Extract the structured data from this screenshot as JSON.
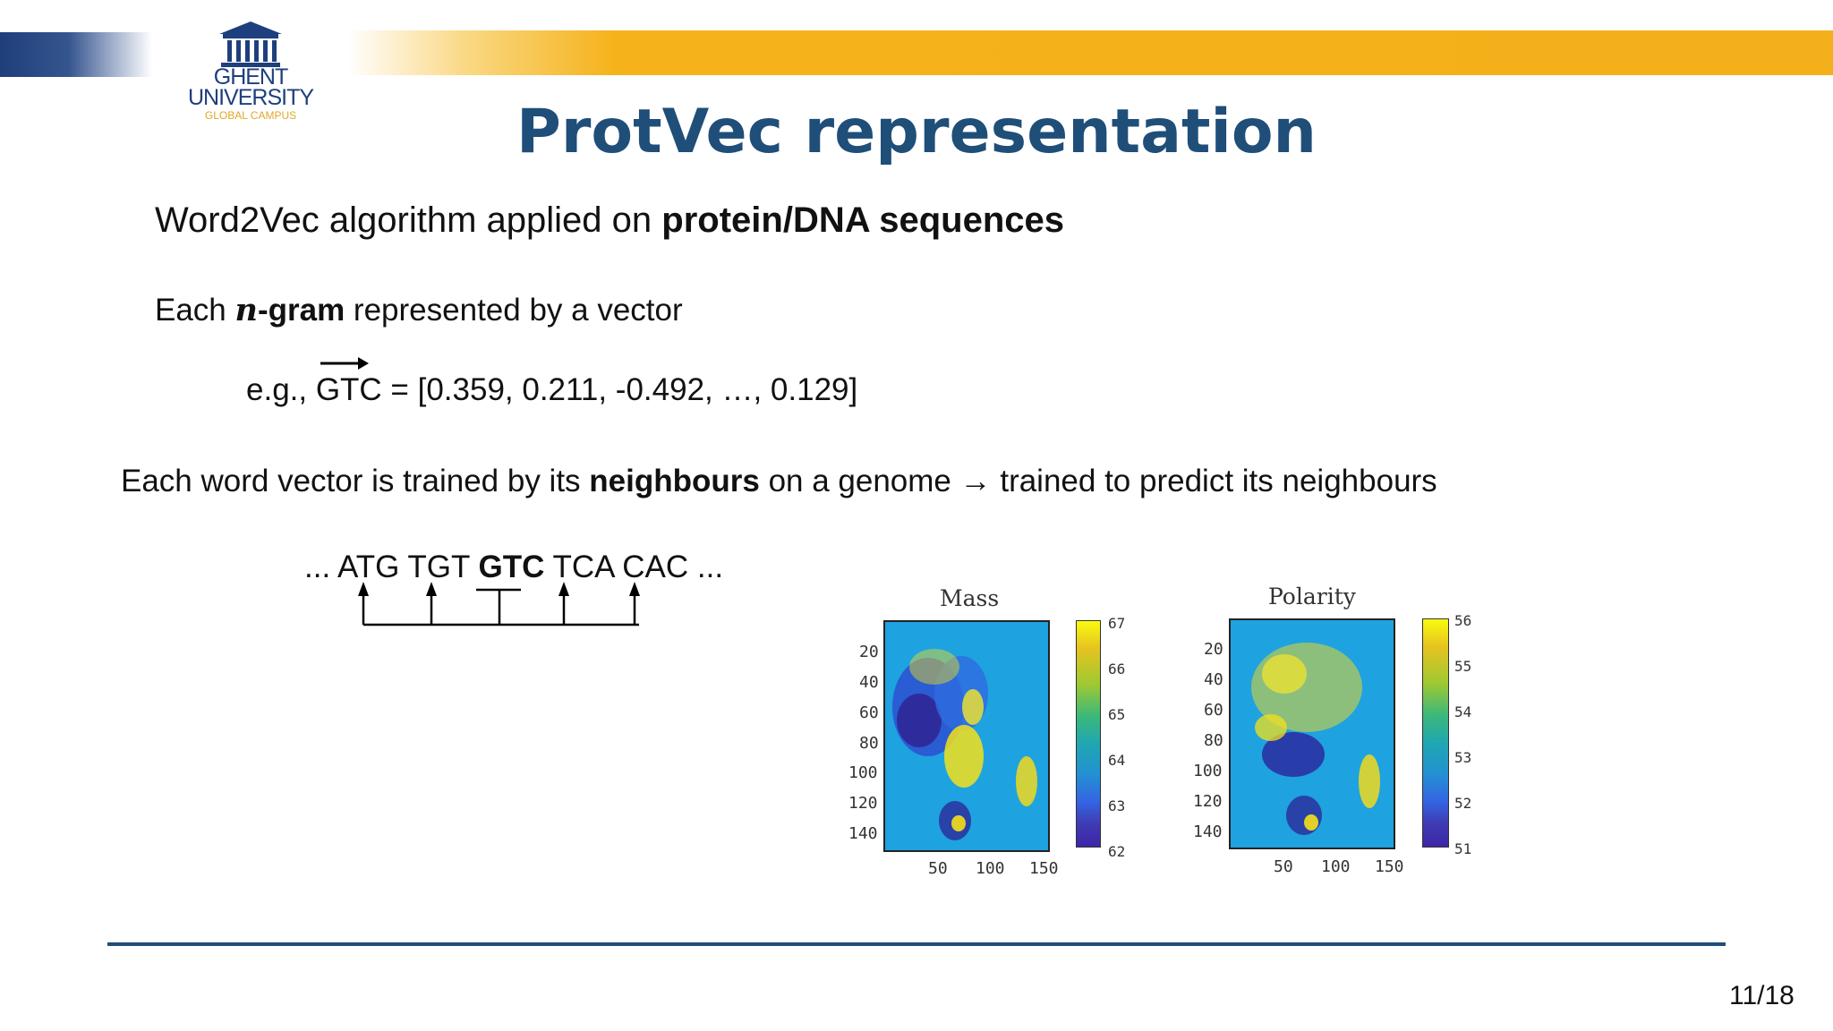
{
  "logo": {
    "line1": "GHENT",
    "line2": "UNIVERSITY",
    "line3": "GLOBAL CAMPUS"
  },
  "title": "ProtVec representation",
  "line1": {
    "pre": "Word2Vec algorithm applied on ",
    "bold": "protein/DNA sequences"
  },
  "line2": {
    "pre": "Each ",
    "n": "n",
    "bold": "-gram",
    "post": " represented by a vector"
  },
  "line3": "e.g., GTC = [0.359, 0.211, -0.492, …, 0.129]",
  "line4": {
    "pre": "Each word vector is trained by its ",
    "bold": "neighbours",
    "post": " on a genome → trained to predict its neighbours"
  },
  "line5": {
    "pre": "... ATG TGT ",
    "bold": "GTC",
    "post": " TCA CAC ..."
  },
  "fig_mass": {
    "title": "Mass",
    "yticks": [
      "20",
      "40",
      "60",
      "80",
      "100",
      "120",
      "140"
    ],
    "xticks": [
      "50",
      "100",
      "150"
    ],
    "cbar_ticks": [
      "67",
      "66",
      "65",
      "64",
      "63",
      "62"
    ]
  },
  "fig_polarity": {
    "title": "Polarity",
    "yticks": [
      "20",
      "40",
      "60",
      "80",
      "100",
      "120",
      "140"
    ],
    "xticks": [
      "50",
      "100",
      "150"
    ],
    "cbar_ticks": [
      "56",
      "55",
      "54",
      "53",
      "52",
      "51"
    ]
  },
  "page_number": "11/18",
  "colors": {
    "title": "#1f4e79",
    "band_yellow": "#f4b01a",
    "band_blue": "#1f3f7a",
    "heat_bg": "#1fa2e0"
  }
}
